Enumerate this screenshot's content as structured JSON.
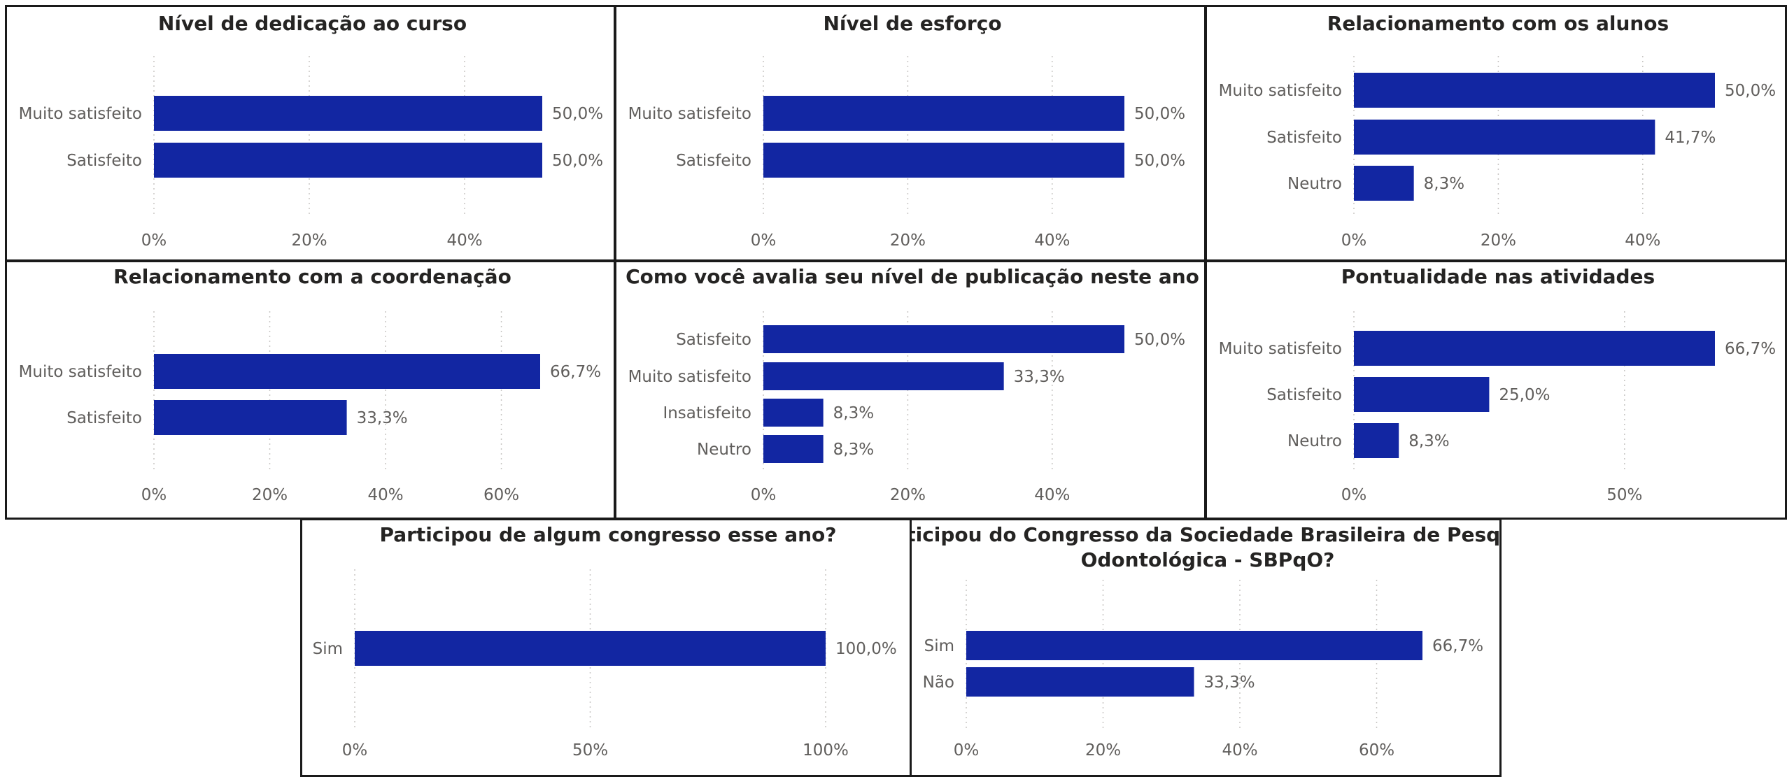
{
  "colors": {
    "bar": "#1226a2",
    "grid": "#c8c6c4",
    "label_outside": "#605e5c",
    "label_inside": "#ffffff"
  },
  "chart_data": [
    {
      "type": "bar",
      "orientation": "horizontal",
      "title": [
        "Nível de dedicação ao curso"
      ],
      "categories": [
        "Muito satisfeito",
        "Satisfeito"
      ],
      "values": [
        50.0,
        50.0
      ],
      "labels": [
        "50,0%",
        "50,0%"
      ],
      "xlim": [
        0,
        50
      ],
      "xticks": [
        0,
        20,
        40
      ],
      "xtick_labels": [
        "0%",
        "20%",
        "40%"
      ],
      "grid": true
    },
    {
      "type": "bar",
      "orientation": "horizontal",
      "title": [
        "Nível de esforço"
      ],
      "categories": [
        "Muito satisfeito",
        "Satisfeito"
      ],
      "values": [
        50.0,
        50.0
      ],
      "labels": [
        "50,0%",
        "50,0%"
      ],
      "xlim": [
        0,
        50
      ],
      "xticks": [
        0,
        20,
        40
      ],
      "xtick_labels": [
        "0%",
        "20%",
        "40%"
      ],
      "grid": true
    },
    {
      "type": "bar",
      "orientation": "horizontal",
      "title": [
        "Relacionamento com os alunos"
      ],
      "categories": [
        "Muito satisfeito",
        "Satisfeito",
        "Neutro"
      ],
      "values": [
        50.0,
        41.7,
        8.3
      ],
      "labels": [
        "50,0%",
        "41,7%",
        "8,3%"
      ],
      "xlim": [
        0,
        50
      ],
      "xticks": [
        0,
        20,
        40
      ],
      "xtick_labels": [
        "0%",
        "20%",
        "40%"
      ],
      "grid": true
    },
    {
      "type": "bar",
      "orientation": "horizontal",
      "title": [
        "Relacionamento com a coordenação"
      ],
      "categories": [
        "Muito satisfeito",
        "Satisfeito"
      ],
      "values": [
        66.7,
        33.3
      ],
      "labels": [
        "66,7%",
        "33,3%"
      ],
      "xlim": [
        0,
        66.7
      ],
      "xticks": [
        0,
        20,
        40,
        60
      ],
      "xtick_labels": [
        "0%",
        "20%",
        "40%",
        "60%"
      ],
      "grid": true
    },
    {
      "type": "bar",
      "orientation": "horizontal",
      "title": [
        "Como você avalia seu nível de publicação neste ano"
      ],
      "categories": [
        "Satisfeito",
        "Muito satisfeito",
        "Insatisfeito",
        "Neutro"
      ],
      "values": [
        50.0,
        33.3,
        8.3,
        8.3
      ],
      "labels": [
        "50,0%",
        "33,3%",
        "8,3%",
        "8,3%"
      ],
      "xlim": [
        0,
        50
      ],
      "xticks": [
        0,
        20,
        40
      ],
      "xtick_labels": [
        "0%",
        "20%",
        "40%"
      ],
      "grid": true
    },
    {
      "type": "bar",
      "orientation": "horizontal",
      "title": [
        "Pontualidade nas atividades"
      ],
      "categories": [
        "Muito satisfeito",
        "Satisfeito",
        "Neutro"
      ],
      "values": [
        66.7,
        25.0,
        8.3
      ],
      "labels": [
        "66,7%",
        "25,0%",
        "8,3%"
      ],
      "xlim": [
        0,
        66.7
      ],
      "xticks": [
        0,
        50
      ],
      "xtick_labels": [
        "0%",
        "50%"
      ],
      "grid": true
    },
    {
      "type": "bar",
      "orientation": "horizontal",
      "title": [
        "Participou de algum congresso esse ano?"
      ],
      "categories": [
        "Sim"
      ],
      "values": [
        100.0
      ],
      "labels": [
        "100,0%"
      ],
      "xlim": [
        0,
        100
      ],
      "xticks": [
        0,
        50,
        100
      ],
      "xtick_labels": [
        "0%",
        "50%",
        "100%"
      ],
      "grid": true
    },
    {
      "type": "bar",
      "orientation": "horizontal",
      "title": [
        "Participou do Congresso da Sociedade Brasileira de Pesquisa",
        "Odontológica - SBPqO?"
      ],
      "categories": [
        "Sim",
        "Não"
      ],
      "values": [
        66.7,
        33.3
      ],
      "labels": [
        "66,7%",
        "33,3%"
      ],
      "xlim": [
        0,
        66.7
      ],
      "xticks": [
        0,
        20,
        40,
        60
      ],
      "xtick_labels": [
        "0%",
        "20%",
        "40%",
        "60%"
      ],
      "grid": true
    }
  ]
}
